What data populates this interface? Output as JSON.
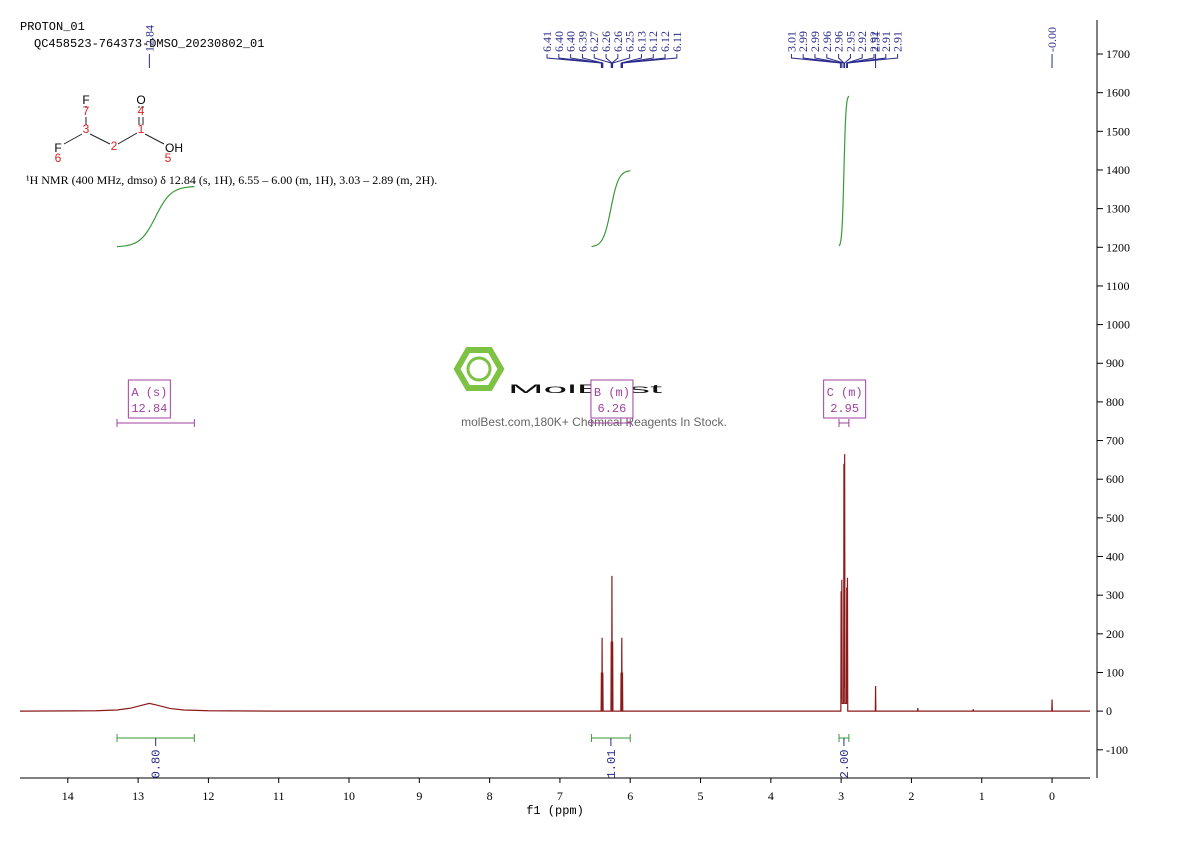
{
  "chart_data": {
    "type": "line",
    "subtitle": "PROTON_01",
    "title": "QC458523-764373-DMSO_20230802_01",
    "description": "¹H NMR (400 MHz, dmso) δ 12.84 (s, 1H), 6.55 – 6.00 (m, 1H), 3.03 – 2.89 (m, 2H).",
    "structure": {
      "atoms": [
        "F",
        "O",
        "F",
        "OH"
      ],
      "numbers": [
        7,
        4,
        3,
        1,
        2,
        6,
        5
      ]
    },
    "watermark": {
      "brand": "MolBest",
      "text": "molBest.com,180K+ Chemical Reagents In Stock."
    },
    "xlabel": "f1 (ppm)",
    "color": "#8b1a1a",
    "x": [
      14.68,
      13.6,
      13.3,
      13.1,
      12.95,
      12.84,
      12.72,
      12.55,
      12.35,
      12.0,
      11.0,
      6.6,
      6.414,
      6.41,
      6.406,
      6.404,
      6.4,
      6.396,
      6.394,
      6.39,
      6.386,
      6.274,
      6.27,
      6.266,
      6.264,
      6.26,
      6.256,
      6.254,
      6.25,
      6.246,
      6.134,
      6.13,
      6.126,
      6.124,
      6.12,
      6.116,
      6.114,
      6.11,
      6.106,
      3.004,
      3.0,
      2.995,
      2.99,
      2.985,
      2.964,
      2.96,
      2.955,
      2.95,
      2.945,
      2.924,
      2.92,
      2.915,
      2.91,
      2.906,
      2.514,
      2.51,
      2.506,
      1.914,
      1.91,
      1.906,
      1.124,
      1.12,
      1.116,
      0.004,
      0,
      -0.004,
      -0.54
    ],
    "values": [
      0,
      1,
      3,
      8,
      15,
      20,
      15,
      7,
      3,
      1,
      0,
      0,
      0,
      100,
      0,
      0,
      190,
      0,
      0,
      100,
      0,
      0,
      180,
      0,
      0,
      350,
      0,
      0,
      180,
      0,
      0,
      100,
      0,
      0,
      190,
      0,
      0,
      100,
      0,
      0,
      310,
      30,
      340,
      20,
      20,
      640,
      60,
      665,
      20,
      20,
      320,
      30,
      345,
      0,
      0,
      65,
      0,
      0,
      8,
      0,
      0,
      5,
      0,
      0,
      30,
      0,
      0
    ],
    "xlim": [
      14.68,
      -0.54
    ],
    "ylim": [
      -173,
      1788
    ],
    "xticks": [
      14,
      13,
      12,
      11,
      10,
      9,
      8,
      7,
      6,
      5,
      4,
      3,
      2,
      1,
      0
    ],
    "yticks": [
      -100,
      0,
      100,
      200,
      300,
      400,
      500,
      600,
      700,
      800,
      900,
      1000,
      1100,
      1200,
      1300,
      1400,
      1500,
      1600,
      1700
    ],
    "peak_labels": [
      {
        "value": 12.84,
        "label": "12.84"
      },
      {
        "value": 6.41,
        "label": "6.41"
      },
      {
        "value": 6.4,
        "label": "6.40"
      },
      {
        "value": 6.4,
        "label": "6.40"
      },
      {
        "value": 6.39,
        "label": "6.39"
      },
      {
        "value": 6.27,
        "label": "6.27"
      },
      {
        "value": 6.26,
        "label": "6.26"
      },
      {
        "value": 6.26,
        "label": "6.26"
      },
      {
        "value": 6.25,
        "label": "6.25"
      },
      {
        "value": 6.13,
        "label": "6.13"
      },
      {
        "value": 6.12,
        "label": "6.12"
      },
      {
        "value": 6.12,
        "label": "6.12"
      },
      {
        "value": 6.11,
        "label": "6.11"
      },
      {
        "value": 3.01,
        "label": "3.01"
      },
      {
        "value": 2.99,
        "label": "2.99"
      },
      {
        "value": 2.99,
        "label": "2.99"
      },
      {
        "value": 2.96,
        "label": "2.96"
      },
      {
        "value": 2.96,
        "label": "2.96"
      },
      {
        "value": 2.95,
        "label": "2.95"
      },
      {
        "value": 2.92,
        "label": "2.92"
      },
      {
        "value": 2.92,
        "label": "2.92"
      },
      {
        "value": 2.91,
        "label": "2.91"
      },
      {
        "value": 2.91,
        "label": "2.91"
      },
      {
        "value": 2.51,
        "label": "2.51"
      },
      {
        "value": 0,
        "label": "-0.00"
      }
    ],
    "multiplets": [
      {
        "name": "A (s)",
        "shift": 12.84,
        "range": [
          13.3,
          12.2
        ]
      },
      {
        "name": "B (m)",
        "shift": 6.26,
        "range": [
          6.55,
          6.0
        ]
      },
      {
        "name": "C (m)",
        "shift": 2.95,
        "range": [
          3.03,
          2.89
        ]
      }
    ],
    "integrals": [
      {
        "range": [
          13.3,
          12.2
        ],
        "value": 0.8,
        "label": "0.80"
      },
      {
        "range": [
          6.55,
          6.0
        ],
        "value": 1.01,
        "label": "1.01"
      },
      {
        "range": [
          3.03,
          2.89
        ],
        "value": 2.0,
        "label": "2.00"
      }
    ]
  }
}
